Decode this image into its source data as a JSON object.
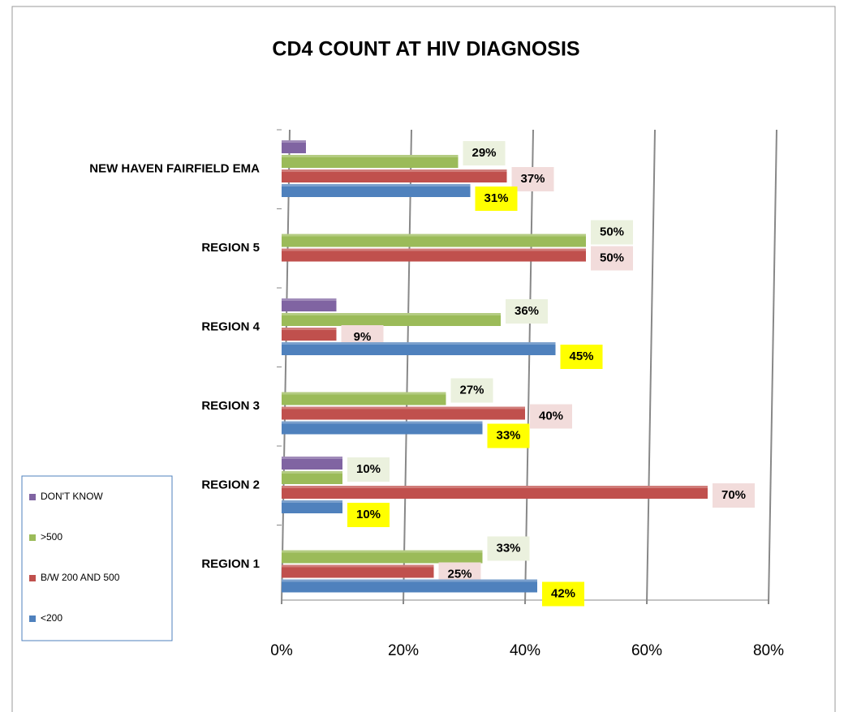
{
  "chart_data": {
    "type": "bar",
    "orientation": "horizontal",
    "title": "CD4 COUNT AT HIV DIAGNOSIS",
    "categories": [
      "REGION 1",
      "REGION 2",
      "REGION 3",
      "REGION 4",
      "REGION 5",
      "NEW HAVEN FAIRFIELD EMA"
    ],
    "series": [
      {
        "name": "<200",
        "color": "#4f81bd",
        "label_bg": "#ffff00",
        "values": [
          42,
          10,
          33,
          45,
          null,
          31
        ],
        "value_labels": [
          "42%",
          "10%",
          "33%",
          "45%",
          null,
          "31%"
        ]
      },
      {
        "name": "B/W 200 AND 500",
        "color": "#c0504d",
        "label_bg": "#f2dcdb",
        "values": [
          25,
          70,
          40,
          9,
          50,
          37
        ],
        "value_labels": [
          "25%",
          "70%",
          "40%",
          "9%",
          "50%",
          "37%"
        ]
      },
      {
        "name": ">500",
        "color": "#9bbb59",
        "label_bg": "#ebf1de",
        "values": [
          33,
          10,
          27,
          36,
          50,
          29
        ],
        "value_labels": [
          "33%",
          "10%",
          "27%",
          "36%",
          "50%",
          "29%"
        ]
      },
      {
        "name": "DON'T KNOW",
        "color": "#8064a2",
        "values": [
          null,
          10,
          null,
          9,
          null,
          4
        ]
      }
    ],
    "xlim": [
      0,
      80
    ],
    "xticks": [
      {
        "value": 0,
        "label": "0%"
      },
      {
        "value": 20,
        "label": "20%"
      },
      {
        "value": 40,
        "label": "40%"
      },
      {
        "value": 60,
        "label": "60%"
      },
      {
        "value": 80,
        "label": "80%"
      }
    ],
    "grid": true,
    "legend": "bottom-left"
  }
}
